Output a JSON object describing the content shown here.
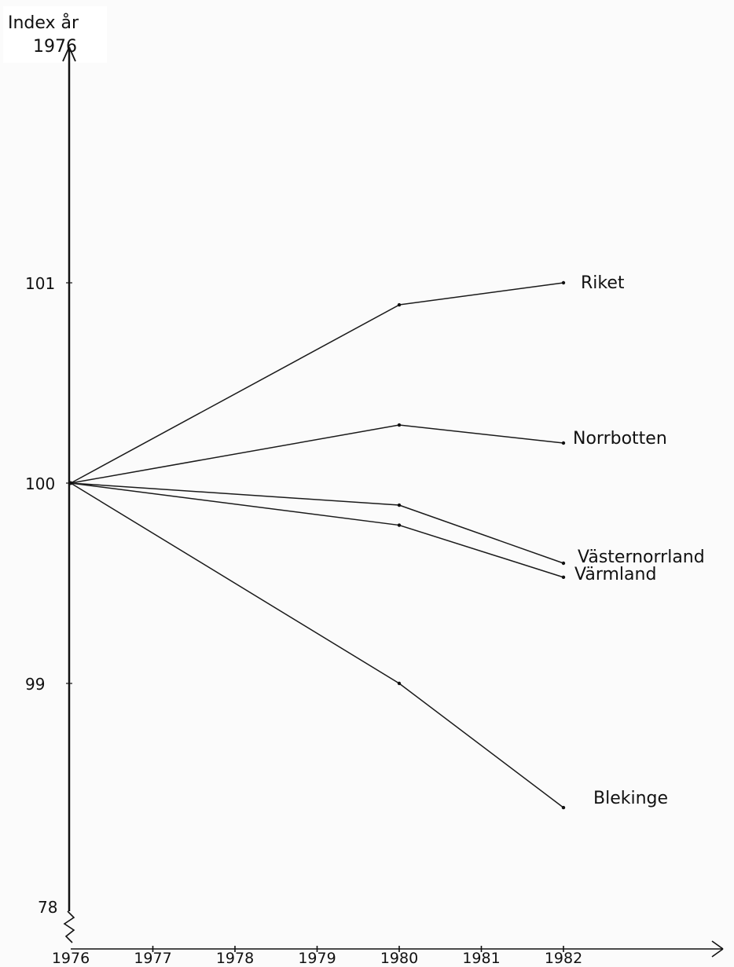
{
  "chart_data": {
    "type": "line",
    "title": "",
    "ylabel_line1": "Index år",
    "ylabel_line2": "1976",
    "xlabel": "",
    "x": [
      1976,
      1980,
      1982
    ],
    "x_tick_labels": [
      "1976",
      "1977",
      "1978",
      "1979",
      "1980",
      "1981",
      "1982"
    ],
    "y_tick_labels": [
      "101",
      "100",
      "99",
      "78"
    ],
    "ylim": [
      98,
      101.5
    ],
    "axis_break": true,
    "grid": false,
    "series": [
      {
        "name": "Riket",
        "values": [
          100,
          100.89,
          101.0
        ]
      },
      {
        "name": "Norrbotten",
        "values": [
          100,
          100.29,
          100.2
        ]
      },
      {
        "name": "Västernorrland",
        "values": [
          100,
          99.89,
          99.6
        ]
      },
      {
        "name": "Värmland",
        "values": [
          100,
          99.79,
          99.53
        ]
      },
      {
        "name": "Blekinge",
        "values": [
          100,
          99.0,
          98.38
        ]
      }
    ]
  }
}
